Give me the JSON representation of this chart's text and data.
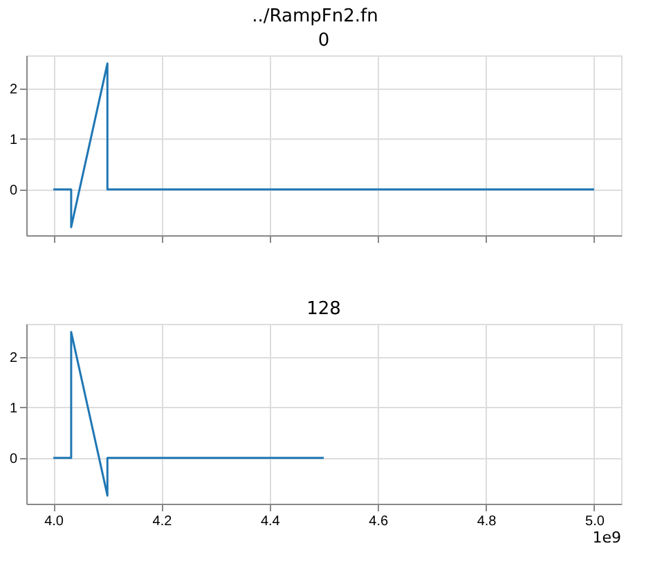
{
  "chart_data": [
    {
      "type": "line",
      "title": "0",
      "x": [
        4.0,
        4.033,
        4.033,
        4.1,
        4.1,
        5.0
      ],
      "series": [
        {
          "color": "#1f77b4",
          "values": [
            0,
            0,
            -0.75,
            2.5,
            0,
            0
          ]
        }
      ],
      "xlim": [
        3.95,
        5.05
      ],
      "xticks": [
        4.0,
        4.2,
        4.4,
        4.6,
        4.8,
        5.0
      ],
      "ylim": [
        -0.9125,
        2.6625
      ],
      "yticks": [
        0,
        1,
        2
      ],
      "grid": true,
      "tick_labels": "y",
      "annotations": [
        "../RampFn2.fn"
      ]
    },
    {
      "type": "line",
      "title": "128",
      "x": [
        4.0,
        4.033,
        4.033,
        4.1,
        4.1,
        4.5
      ],
      "series": [
        {
          "color": "#1f77b4",
          "values": [
            0,
            0,
            2.5,
            -0.75,
            0,
            0
          ]
        }
      ],
      "xlim": [
        3.95,
        5.05
      ],
      "xticks": [
        {
          "value": 4.0,
          "label": "4.0"
        },
        {
          "value": 4.2,
          "label": "4.2"
        },
        {
          "value": 4.4,
          "label": "4.4"
        },
        {
          "value": 4.6,
          "label": "4.6"
        },
        {
          "value": 4.8,
          "label": "4.8"
        },
        {
          "value": 5.0,
          "label": "5.0"
        }
      ],
      "ylim": [
        -0.9125,
        2.6625
      ],
      "yticks": [
        0,
        1,
        2
      ],
      "grid": true,
      "annotations": [
        "1e9"
      ]
    }
  ]
}
